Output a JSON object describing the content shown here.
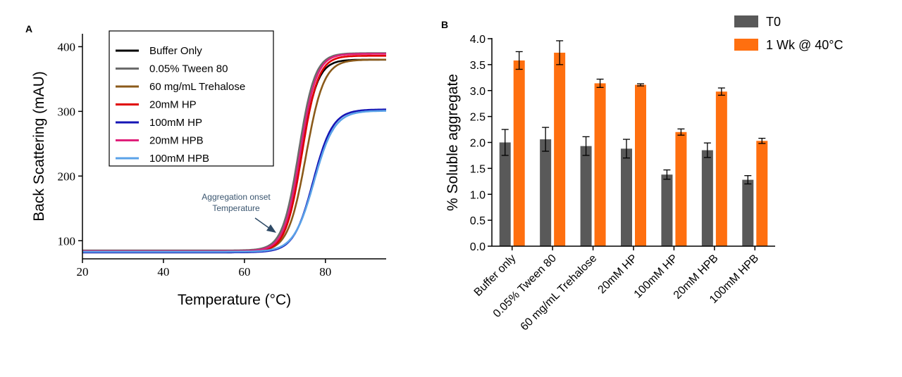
{
  "chart_data": [
    {
      "id": "A",
      "panel_label": "A",
      "type": "line",
      "xlabel": "Temperature (°C)",
      "ylabel": "Back Scattering (mAU)",
      "xlim": [
        20,
        95
      ],
      "ylim": [
        72,
        420
      ],
      "xticks": [
        20,
        40,
        60,
        80
      ],
      "yticks": [
        100,
        200,
        300,
        400
      ],
      "annotation": [
        "Aggregation onset",
        "Temperature"
      ],
      "series": [
        {
          "name": "Buffer Only",
          "color": "#000000",
          "baseline": 82,
          "plateau": 380,
          "midpoint": 74.0,
          "width": 2.0
        },
        {
          "name": "0.05% Tween 80",
          "color": "#6b6b6b",
          "baseline": 85,
          "plateau": 390,
          "midpoint": 73.4,
          "width": 2.0
        },
        {
          "name": "60 mg/mL Trehalose",
          "color": "#8b5a1a",
          "baseline": 83,
          "plateau": 380,
          "midpoint": 75.2,
          "width": 2.2
        },
        {
          "name": "20mM HP",
          "color": "#e00000",
          "baseline": 83,
          "plateau": 386,
          "midpoint": 74.2,
          "width": 2.0
        },
        {
          "name": "100mM HP",
          "color": "#1515b5",
          "baseline": 82,
          "plateau": 303,
          "midpoint": 77.0,
          "width": 2.4
        },
        {
          "name": "20mM HPB",
          "color": "#e0207a",
          "baseline": 84,
          "plateau": 389,
          "midpoint": 73.8,
          "width": 2.0
        },
        {
          "name": "100mM HPB",
          "color": "#5aa2e8",
          "baseline": 83,
          "plateau": 301,
          "midpoint": 77.2,
          "width": 2.5
        }
      ]
    },
    {
      "id": "B",
      "panel_label": "B",
      "type": "bar",
      "ylabel": "% Soluble aggregate",
      "ylim": [
        0,
        4.0
      ],
      "yticks": [
        "0.0",
        "0.5",
        "1.0",
        "1.5",
        "2.0",
        "2.5",
        "3.0",
        "3.5",
        "4.0"
      ],
      "categories": [
        "Buffer only",
        "0.05% Tween 80",
        "60 mg/mL Trehalose",
        "20mM HP",
        "100mM HP",
        "20mM HPB",
        "100mM HPB"
      ],
      "series": [
        {
          "name": "T0",
          "color": "#595959",
          "values": [
            2.0,
            2.06,
            1.93,
            1.88,
            1.38,
            1.85,
            1.28
          ],
          "errors": [
            0.25,
            0.23,
            0.18,
            0.18,
            0.09,
            0.14,
            0.08
          ]
        },
        {
          "name": "1 Wk @ 40°C",
          "color": "#ff6f0f",
          "values": [
            3.58,
            3.73,
            3.14,
            3.11,
            2.2,
            2.98,
            2.03
          ],
          "errors": [
            0.17,
            0.23,
            0.08,
            0.02,
            0.06,
            0.07,
            0.05
          ]
        }
      ]
    }
  ]
}
